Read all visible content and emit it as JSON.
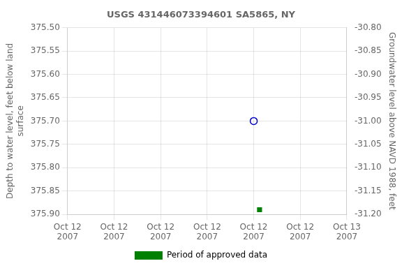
{
  "chart_data": {
    "type": "scatter",
    "title": "USGS 431446073394601 SA5865, NY",
    "ylabel": "Depth to water level, feet below land\nsurface",
    "y2label": "Groundwater level above NAVD 1988, feet",
    "xlim": [
      0,
      24
    ],
    "xticks": [
      {
        "value": 0,
        "label": "Oct 12\n2007"
      },
      {
        "value": 4,
        "label": "Oct 12\n2007"
      },
      {
        "value": 8,
        "label": "Oct 12\n2007"
      },
      {
        "value": 12,
        "label": "Oct 12\n2007"
      },
      {
        "value": 16,
        "label": "Oct 12\n2007"
      },
      {
        "value": 20,
        "label": "Oct 12\n2007"
      },
      {
        "value": 24,
        "label": "Oct 13\n2007"
      }
    ],
    "ylim": [
      375.9,
      375.5
    ],
    "yticks": [
      {
        "value": 375.5,
        "label": "375.50"
      },
      375.55,
      {
        "value": 375.6,
        "label": "375.60"
      },
      375.65,
      {
        "value": 375.7,
        "label": "375.70"
      },
      375.75,
      {
        "value": 375.8,
        "label": "375.80"
      },
      375.85,
      {
        "value": 375.9,
        "label": "375.90"
      }
    ],
    "y2lim": [
      -31.2,
      -30.8
    ],
    "y2ticks": [
      {
        "value": -30.8,
        "label": "-30.80"
      },
      -30.85,
      {
        "value": -30.9,
        "label": "-30.90"
      },
      -30.95,
      {
        "value": -31.0,
        "label": "-31.00"
      },
      -31.05,
      {
        "value": -31.1,
        "label": "-31.10"
      },
      -31.15,
      {
        "value": -31.2,
        "label": "-31.20"
      }
    ],
    "grid": true,
    "legend": "bottom",
    "series": [
      {
        "color": "#0000cc",
        "marker": "open_circle",
        "x": [
          16.0
        ],
        "values": [
          375.7
        ]
      },
      {
        "name": "Period of approved data",
        "color": "#008000",
        "marker": "square",
        "x": [
          16.5
        ],
        "values": [
          375.89
        ]
      }
    ]
  }
}
